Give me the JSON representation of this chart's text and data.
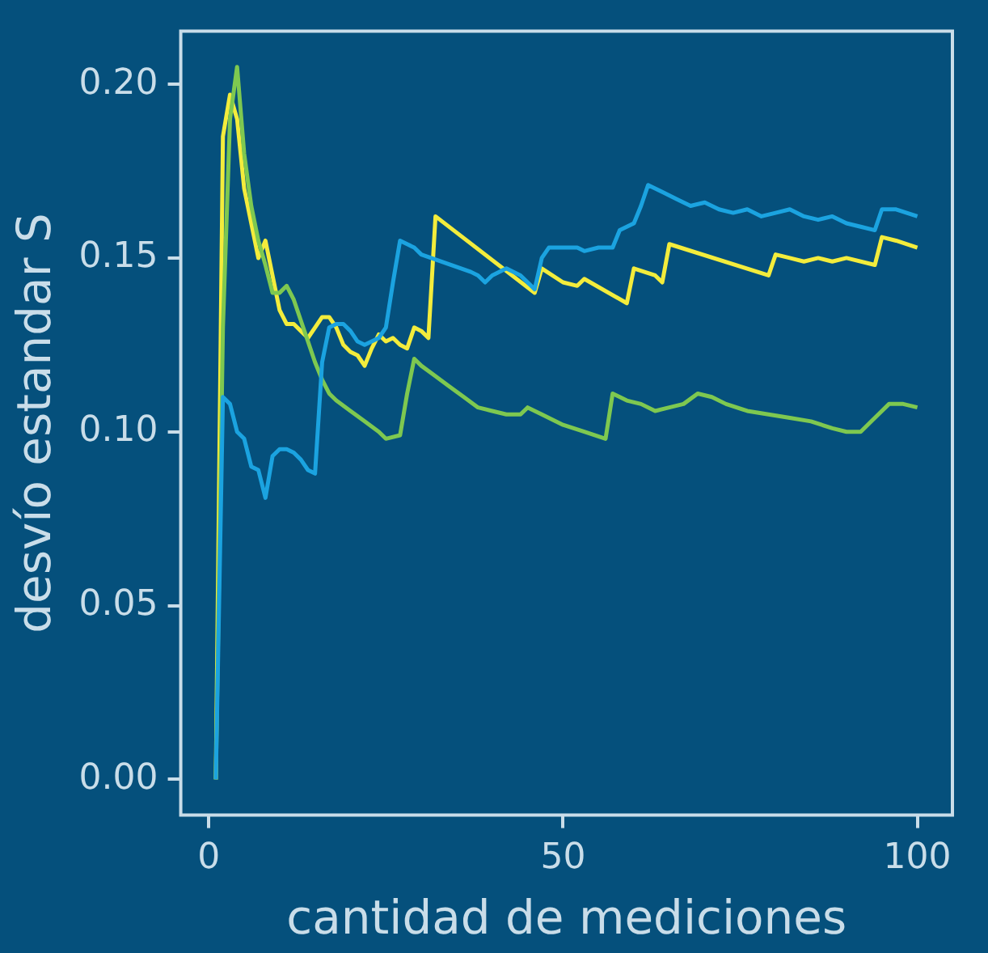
{
  "chart_data": {
    "type": "line",
    "xlabel": "cantidad de mediciones",
    "ylabel": "desvío estandar S",
    "xlim": [
      -3.95,
      104.95
    ],
    "xticks": [
      0,
      50,
      100
    ],
    "ylim": [
      -0.0103,
      0.2153
    ],
    "yticks": [
      {
        "value": 0,
        "label": "0.00"
      },
      {
        "value": 0.05,
        "label": "0.05"
      },
      {
        "value": 0.1,
        "label": "0.10"
      },
      {
        "value": 0.15,
        "label": "0.15"
      },
      {
        "value": 0.2,
        "label": "0.20"
      }
    ],
    "grid": false,
    "legend": false,
    "marker": "none",
    "line_style": "solid",
    "series": [
      {
        "color": "#1ba3e0",
        "x": [
          1,
          2,
          3,
          4,
          5,
          6,
          7,
          8,
          9,
          10,
          11,
          12,
          13,
          14,
          15,
          16,
          17,
          18,
          19,
          20,
          21,
          22,
          23,
          24,
          25,
          26,
          27,
          28,
          29,
          30,
          37,
          38,
          39,
          40,
          42,
          44,
          46,
          47,
          48,
          52,
          53,
          55,
          57,
          58,
          60,
          61,
          62,
          64,
          66,
          68,
          70,
          72,
          74,
          76,
          78,
          80,
          82,
          84,
          86,
          88,
          90,
          92,
          94,
          95,
          97,
          100
        ],
        "values": [
          0,
          0.11,
          0.108,
          0.1,
          0.098,
          0.09,
          0.089,
          0.081,
          0.093,
          0.095,
          0.095,
          0.094,
          0.092,
          0.089,
          0.088,
          0.12,
          0.13,
          0.131,
          0.131,
          0.129,
          0.126,
          0.125,
          0.126,
          0.127,
          0.13,
          0.143,
          0.155,
          0.154,
          0.153,
          0.151,
          0.146,
          0.145,
          0.143,
          0.145,
          0.147,
          0.145,
          0.141,
          0.15,
          0.153,
          0.153,
          0.152,
          0.153,
          0.153,
          0.158,
          0.16,
          0.165,
          0.171,
          0.169,
          0.167,
          0.165,
          0.166,
          0.164,
          0.163,
          0.164,
          0.162,
          0.163,
          0.164,
          0.162,
          0.161,
          0.162,
          0.16,
          0.159,
          0.158,
          0.164,
          0.164,
          0.162
        ]
      },
      {
        "color": "#7ec850",
        "x": [
          1,
          2,
          3,
          4,
          5,
          6,
          7,
          8,
          9,
          10,
          11,
          12,
          13,
          14,
          15,
          16,
          17,
          18,
          20,
          22,
          24,
          25,
          27,
          28,
          29,
          30,
          32,
          34,
          36,
          38,
          40,
          42,
          44,
          45,
          47,
          50,
          53,
          56,
          57,
          59,
          61,
          63,
          65,
          67,
          69,
          71,
          73,
          76,
          79,
          82,
          85,
          88,
          90,
          92,
          94,
          96,
          98,
          100
        ],
        "values": [
          0,
          0.13,
          0.19,
          0.205,
          0.18,
          0.165,
          0.155,
          0.148,
          0.14,
          0.14,
          0.142,
          0.138,
          0.132,
          0.126,
          0.12,
          0.115,
          0.111,
          0.109,
          0.106,
          0.103,
          0.1,
          0.098,
          0.099,
          0.111,
          0.121,
          0.119,
          0.116,
          0.113,
          0.11,
          0.107,
          0.106,
          0.105,
          0.105,
          0.107,
          0.105,
          0.102,
          0.1,
          0.098,
          0.111,
          0.109,
          0.108,
          0.106,
          0.107,
          0.108,
          0.111,
          0.11,
          0.108,
          0.106,
          0.105,
          0.104,
          0.103,
          0.101,
          0.1,
          0.1,
          0.104,
          0.108,
          0.108,
          0.107
        ]
      },
      {
        "color": "#f3ec3c",
        "x": [
          1,
          2,
          3,
          4,
          5,
          6,
          7,
          8,
          9,
          10,
          11,
          12,
          13,
          14,
          15,
          16,
          17,
          18,
          19,
          20,
          21,
          22,
          23,
          24,
          25,
          26,
          27,
          28,
          29,
          30,
          31,
          32,
          46,
          47,
          50,
          52,
          53,
          59,
          60,
          63,
          64,
          65,
          79,
          80,
          82,
          84,
          86,
          88,
          90,
          94,
          95,
          97,
          100
        ],
        "values": [
          0,
          0.185,
          0.197,
          0.19,
          0.17,
          0.16,
          0.15,
          0.155,
          0.145,
          0.135,
          0.131,
          0.131,
          0.129,
          0.127,
          0.13,
          0.133,
          0.133,
          0.13,
          0.125,
          0.123,
          0.122,
          0.119,
          0.124,
          0.128,
          0.126,
          0.127,
          0.125,
          0.124,
          0.13,
          0.129,
          0.127,
          0.162,
          0.14,
          0.147,
          0.143,
          0.142,
          0.144,
          0.137,
          0.147,
          0.145,
          0.143,
          0.154,
          0.145,
          0.151,
          0.15,
          0.149,
          0.15,
          0.149,
          0.15,
          0.148,
          0.156,
          0.155,
          0.153
        ]
      }
    ]
  }
}
